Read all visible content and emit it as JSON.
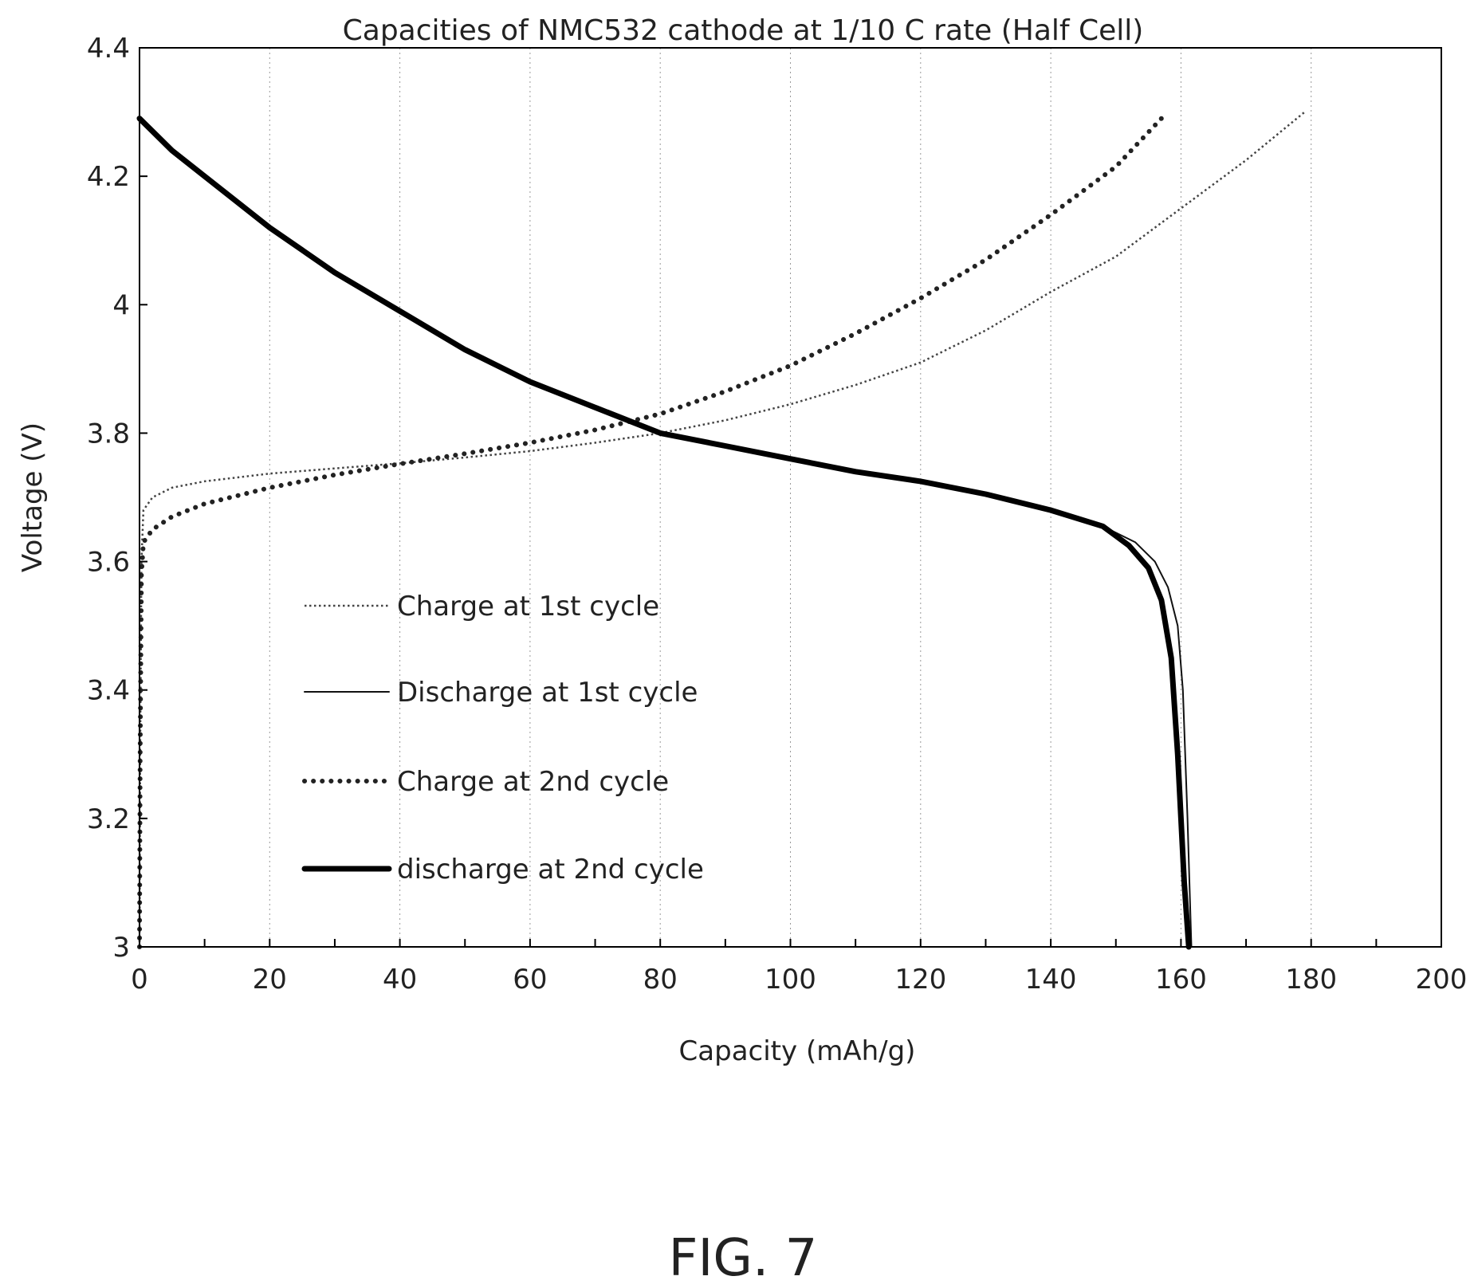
{
  "figure_label": "FIG. 7",
  "chart_data": {
    "type": "line",
    "title": "Capacities of NMC532 cathode at 1/10 C rate (Half Cell)",
    "xlabel": "Capacity (mAh/g)",
    "ylabel": "Voltage (V)",
    "xlim": [
      0,
      200
    ],
    "ylim": [
      3,
      4.4
    ],
    "x_ticks": [
      0,
      20,
      40,
      60,
      80,
      100,
      120,
      140,
      160,
      180,
      200
    ],
    "y_ticks": [
      3,
      3.2,
      3.4,
      3.6,
      3.8,
      4,
      4.2,
      4.4
    ],
    "x_tick_labels": [
      "0",
      "20",
      "40",
      "60",
      "80",
      "100",
      "120",
      "140",
      "160",
      "180",
      "200"
    ],
    "y_tick_labels": [
      "3",
      "3.2",
      "3.4",
      "3.6",
      "3.8",
      "4",
      "4.2",
      "4.4"
    ],
    "grid": "vertical dotted",
    "legend_position": "left-center",
    "series": [
      {
        "name": "Charge at 1st cycle",
        "style": "dotted-thin",
        "color": "#444444",
        "points": [
          [
            0,
            3.0
          ],
          [
            0.1,
            3.3
          ],
          [
            0.3,
            3.6
          ],
          [
            0.6,
            3.68
          ],
          [
            2,
            3.7
          ],
          [
            5,
            3.715
          ],
          [
            10,
            3.725
          ],
          [
            20,
            3.737
          ],
          [
            30,
            3.745
          ],
          [
            40,
            3.753
          ],
          [
            50,
            3.762
          ],
          [
            60,
            3.772
          ],
          [
            70,
            3.785
          ],
          [
            80,
            3.8
          ],
          [
            90,
            3.82
          ],
          [
            100,
            3.845
          ],
          [
            110,
            3.875
          ],
          [
            120,
            3.91
          ],
          [
            130,
            3.96
          ],
          [
            140,
            4.02
          ],
          [
            150,
            4.075
          ],
          [
            160,
            4.15
          ],
          [
            170,
            4.225
          ],
          [
            179,
            4.3
          ]
        ]
      },
      {
        "name": "Discharge at 1st cycle",
        "style": "solid-thin",
        "color": "#111111",
        "points": [
          [
            0,
            4.29
          ],
          [
            5,
            4.24
          ],
          [
            10,
            4.2
          ],
          [
            20,
            4.12
          ],
          [
            30,
            4.05
          ],
          [
            40,
            3.99
          ],
          [
            50,
            3.93
          ],
          [
            60,
            3.88
          ],
          [
            70,
            3.84
          ],
          [
            80,
            3.8
          ],
          [
            90,
            3.78
          ],
          [
            100,
            3.76
          ],
          [
            110,
            3.74
          ],
          [
            120,
            3.725
          ],
          [
            130,
            3.705
          ],
          [
            140,
            3.68
          ],
          [
            148,
            3.655
          ],
          [
            153,
            3.63
          ],
          [
            156,
            3.6
          ],
          [
            158,
            3.56
          ],
          [
            159.5,
            3.5
          ],
          [
            160.3,
            3.4
          ],
          [
            161,
            3.2
          ],
          [
            161.6,
            3.0
          ]
        ]
      },
      {
        "name": "Charge at 2nd cycle",
        "style": "dotted-thick",
        "color": "#222222",
        "points": [
          [
            0,
            3.0
          ],
          [
            0.1,
            3.3
          ],
          [
            0.3,
            3.58
          ],
          [
            0.6,
            3.63
          ],
          [
            2,
            3.65
          ],
          [
            5,
            3.67
          ],
          [
            10,
            3.69
          ],
          [
            20,
            3.715
          ],
          [
            30,
            3.735
          ],
          [
            40,
            3.752
          ],
          [
            50,
            3.768
          ],
          [
            60,
            3.785
          ],
          [
            70,
            3.805
          ],
          [
            80,
            3.83
          ],
          [
            90,
            3.865
          ],
          [
            100,
            3.905
          ],
          [
            110,
            3.955
          ],
          [
            120,
            4.01
          ],
          [
            130,
            4.07
          ],
          [
            140,
            4.14
          ],
          [
            150,
            4.215
          ],
          [
            157,
            4.29
          ]
        ]
      },
      {
        "name": "discharge at 2nd cycle",
        "style": "solid-thick",
        "color": "#000000",
        "points": [
          [
            0,
            4.29
          ],
          [
            5,
            4.24
          ],
          [
            10,
            4.2
          ],
          [
            20,
            4.12
          ],
          [
            30,
            4.05
          ],
          [
            40,
            3.99
          ],
          [
            50,
            3.93
          ],
          [
            60,
            3.88
          ],
          [
            70,
            3.84
          ],
          [
            80,
            3.8
          ],
          [
            90,
            3.78
          ],
          [
            100,
            3.76
          ],
          [
            110,
            3.74
          ],
          [
            120,
            3.725
          ],
          [
            130,
            3.705
          ],
          [
            140,
            3.68
          ],
          [
            148,
            3.655
          ],
          [
            152,
            3.625
          ],
          [
            155,
            3.59
          ],
          [
            157,
            3.54
          ],
          [
            158.5,
            3.45
          ],
          [
            159.5,
            3.3
          ],
          [
            160.5,
            3.1
          ],
          [
            161.2,
            3.0
          ]
        ]
      }
    ]
  }
}
